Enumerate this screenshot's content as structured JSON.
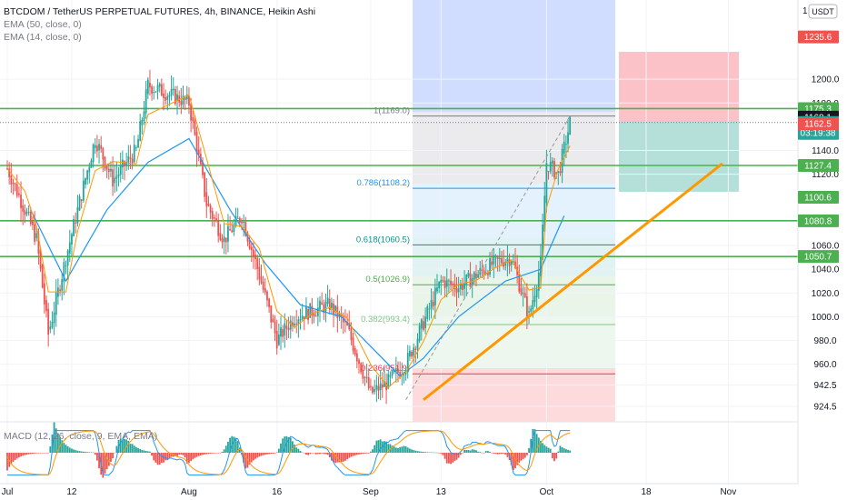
{
  "header": {
    "title": "BTCDOM / TetherUS PERPETUAL FUTURES, 4h, BINANCE, Heikin Ashi",
    "ema1": "EMA (50, close, 0)",
    "ema2": "EMA (14, close, 0)",
    "currency_button": "USDT",
    "price_scale_top": "1"
  },
  "macd": {
    "title": "MACD (12, 26, close, 9, EMA, EMA)"
  },
  "colors": {
    "up": "#26a69a",
    "down": "#ef5350",
    "hline": "#4caf50",
    "trend": "#ff9800",
    "ema": "#2196f3"
  },
  "chart_data": [
    {
      "type": "candlestick",
      "title": "BTCDOM / TetherUS PERPETUAL FUTURES, 4h, BINANCE, Heikin Ashi",
      "style": "Heikin Ashi",
      "ylim": [
        930,
        1240
      ],
      "y_ticks": [
        1200.0,
        1180.0,
        1140.0,
        1120.0,
        1060.0,
        1040.0,
        1020.0,
        1000.0,
        980.0,
        960.0,
        942.5,
        924.5
      ],
      "x_ticks": [
        "Jul",
        "12",
        "Aug",
        "16",
        "Sep",
        "13",
        "Oct",
        "18",
        "Nov"
      ],
      "price_path": [
        {
          "date": "Jul",
          "close": 1125
        },
        {
          "date": "Jul 4",
          "close": 1090
        },
        {
          "date": "Jul 6",
          "close": 1065
        },
        {
          "date": "Jul 8",
          "close": 985
        },
        {
          "date": "Jul 11",
          "close": 1050
        },
        {
          "date": "Jul 13",
          "close": 1090
        },
        {
          "date": "Jul 16",
          "close": 1150
        },
        {
          "date": "Jul 19",
          "close": 1115
        },
        {
          "date": "Jul 23",
          "close": 1140
        },
        {
          "date": "Jul 25",
          "close": 1195
        },
        {
          "date": "Aug",
          "close": 1180
        },
        {
          "date": "Aug 4",
          "close": 1095
        },
        {
          "date": "Aug 7",
          "close": 1065
        },
        {
          "date": "Aug 10",
          "close": 1085
        },
        {
          "date": "Aug 13",
          "close": 1035
        },
        {
          "date": "Aug 16",
          "close": 980
        },
        {
          "date": "Aug 19",
          "close": 1000
        },
        {
          "date": "Aug 22",
          "close": 1005
        },
        {
          "date": "Aug 25",
          "close": 1010
        },
        {
          "date": "Aug 28",
          "close": 990
        },
        {
          "date": "Sep",
          "close": 935
        },
        {
          "date": "Sep 4",
          "close": 945
        },
        {
          "date": "Sep 7",
          "close": 960
        },
        {
          "date": "Sep 10",
          "close": 995
        },
        {
          "date": "Sep 13",
          "close": 1030
        },
        {
          "date": "Sep 16",
          "close": 1025
        },
        {
          "date": "Sep 19",
          "close": 1035
        },
        {
          "date": "Sep 22",
          "close": 1045
        },
        {
          "date": "Sep 25",
          "close": 1050
        },
        {
          "date": "Sep 28",
          "close": 1000
        },
        {
          "date": "Sep 30",
          "close": 1045
        },
        {
          "date": "Oct",
          "close": 1130
        },
        {
          "date": "Oct 3",
          "close": 1120
        },
        {
          "date": "Oct 5",
          "close": 1163.6
        }
      ],
      "ema_50": [
        {
          "date": "Jul 5",
          "close": 1090
        },
        {
          "date": "Jul 11",
          "close": 1030
        },
        {
          "date": "Jul 18",
          "close": 1090
        },
        {
          "date": "Jul 25",
          "close": 1130
        },
        {
          "date": "Aug",
          "close": 1150
        },
        {
          "date": "Aug 8",
          "close": 1090
        },
        {
          "date": "Aug 14",
          "close": 1045
        },
        {
          "date": "Aug 20",
          "close": 1010
        },
        {
          "date": "Aug 27",
          "close": 1000
        },
        {
          "date": "Sep 1",
          "close": 975
        },
        {
          "date": "Sep 6",
          "close": 950
        },
        {
          "date": "Sep 10",
          "close": 965
        },
        {
          "date": "Sep 16",
          "close": 1000
        },
        {
          "date": "Sep 24",
          "close": 1030
        },
        {
          "date": "Sep 30",
          "close": 1040
        },
        {
          "date": "Oct 4",
          "close": 1085
        }
      ],
      "horizontal_lines": [
        1175.3,
        1127.4,
        1080.8,
        1050.7
      ],
      "price_labels": [
        {
          "text": "1235.6",
          "value": 1235.6,
          "color": "#ef5350"
        },
        {
          "text": "1175.3",
          "value": 1175.3,
          "color": "#4caf50"
        },
        {
          "text": "1168.1",
          "value": 1168.1,
          "color": "#131722"
        },
        {
          "text": "1163.6",
          "value": 1163.6,
          "color": "#26a69a",
          "sub": "03:19:38"
        },
        {
          "text": "1162.5",
          "value": 1162.5,
          "color": "#ef5350"
        },
        {
          "text": "1127.4",
          "value": 1127.4,
          "color": "#4caf50"
        },
        {
          "text": "1100.6",
          "value": 1100.6,
          "color": "#4caf50"
        },
        {
          "text": "1080.8",
          "value": 1080.8,
          "color": "#4caf50"
        },
        {
          "text": "1050.7",
          "value": 1050.7,
          "color": "#4caf50"
        }
      ],
      "fibonacci": [
        {
          "label": "1(1169.0)",
          "value": 1169.0,
          "color": "#787b86"
        },
        {
          "label": "0.786(1108.2)",
          "value": 1108.2,
          "color": "#2196f3"
        },
        {
          "label": "0.618(1060.5)",
          "value": 1060.5,
          "color": "#009688"
        },
        {
          "label": "0.5(1026.9)",
          "value": 1026.9,
          "color": "#4caf50"
        },
        {
          "label": "0.382(993.4)",
          "value": 993.4,
          "color": "#81c784"
        },
        {
          "label": "0.236(951.9)",
          "value": 951.9,
          "color": "#f23645"
        }
      ],
      "position_tool": {
        "stop": 1235.6,
        "entry": 1162.5,
        "target": 1100.6
      },
      "trendline": [
        {
          "date": "Sep 10",
          "value": 930
        },
        {
          "date": "Oct 31",
          "value": 1129
        }
      ]
    },
    {
      "type": "line",
      "title": "MACD (12, 26, close, 9, EMA, EMA)",
      "ylim": [
        -25,
        25
      ],
      "y_ticks": [
        25.0,
        0.0,
        -25.0
      ]
    }
  ]
}
